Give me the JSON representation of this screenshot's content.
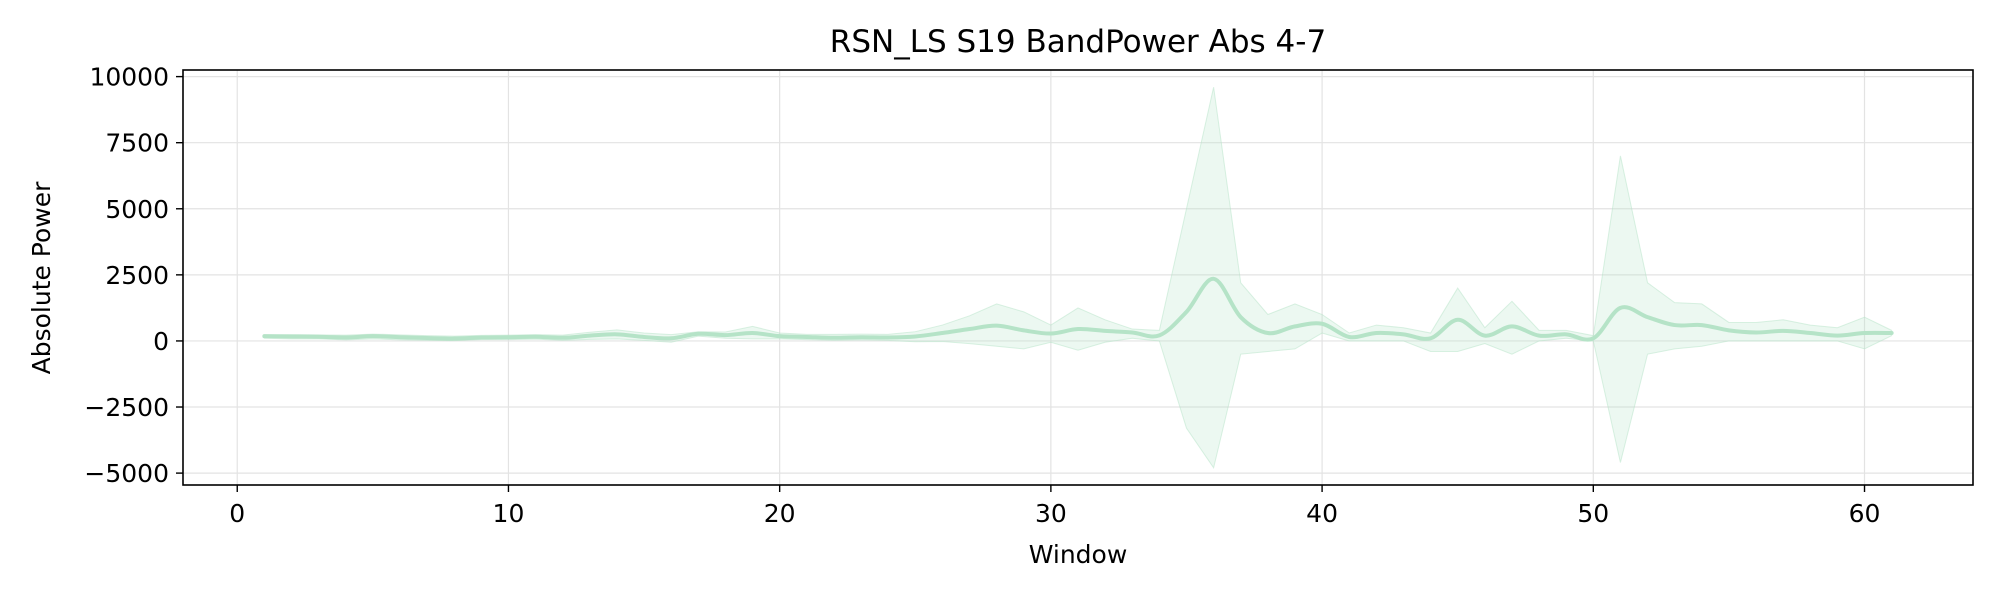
{
  "chart_data": {
    "type": "line",
    "title": "RSN_LS S19 BandPower Abs 4-7",
    "xlabel": "Window",
    "ylabel": "Absolute Power",
    "xlim": [
      -2,
      64
    ],
    "ylim": [
      -5450,
      10250
    ],
    "xticks": [
      0,
      10,
      20,
      30,
      40,
      50,
      60
    ],
    "yticks": [
      -5000,
      -2500,
      0,
      2500,
      5000,
      7500,
      10000
    ],
    "ytick_labels": [
      "−5000",
      "−2500",
      "0",
      "2500",
      "5000",
      "7500",
      "10000"
    ],
    "grid": true,
    "legend": "none",
    "colors": {
      "line": "#b5e3c7",
      "band": "#b5e3c7"
    },
    "series": [
      {
        "x": [
          1,
          2,
          3,
          4,
          5,
          6,
          7,
          8,
          9,
          10,
          11,
          12,
          13,
          14,
          15,
          16,
          17,
          18,
          19,
          20,
          21,
          22,
          23,
          24,
          25,
          26,
          27,
          28,
          29,
          30,
          31,
          32,
          33,
          34,
          35,
          36,
          37,
          38,
          39,
          40,
          41,
          42,
          43,
          44,
          45,
          46,
          47,
          48,
          49,
          50,
          51,
          52,
          53,
          54,
          55,
          56,
          57,
          58,
          59,
          60,
          61
        ],
        "mean": [
          180,
          170,
          160,
          130,
          180,
          140,
          110,
          90,
          130,
          140,
          160,
          120,
          200,
          250,
          150,
          100,
          270,
          220,
          300,
          180,
          150,
          120,
          140,
          130,
          170,
          300,
          450,
          580,
          400,
          280,
          450,
          380,
          320,
          210,
          1100,
          2350,
          900,
          300,
          550,
          650,
          150,
          300,
          250,
          100,
          800,
          200,
          550,
          200,
          250,
          100,
          1250,
          900,
          600,
          600,
          400,
          320,
          380,
          300,
          200,
          300,
          300
        ],
        "upper": [
          230,
          240,
          230,
          220,
          260,
          230,
          200,
          180,
          210,
          220,
          240,
          220,
          330,
          420,
          300,
          240,
          350,
          340,
          550,
          300,
          250,
          250,
          260,
          250,
          350,
          600,
          950,
          1400,
          1100,
          600,
          1250,
          800,
          450,
          400,
          5000,
          9600,
          2200,
          1000,
          1400,
          1000,
          300,
          600,
          500,
          300,
          2000,
          500,
          1500,
          400,
          400,
          200,
          7000,
          2200,
          1450,
          1400,
          700,
          700,
          800,
          600,
          500,
          900,
          400
        ],
        "lower": [
          100,
          80,
          80,
          40,
          80,
          40,
          20,
          10,
          50,
          50,
          70,
          20,
          60,
          80,
          20,
          -50,
          180,
          100,
          80,
          80,
          50,
          20,
          40,
          20,
          -30,
          -20,
          -100,
          -200,
          -300,
          -50,
          -350,
          -50,
          100,
          0,
          -3300,
          -4800,
          -500,
          -400,
          -300,
          300,
          0,
          0,
          0,
          -400,
          -400,
          -100,
          -500,
          0,
          100,
          0,
          -4600,
          -500,
          -300,
          -200,
          0,
          0,
          0,
          0,
          0,
          -300,
          200
        ]
      }
    ]
  }
}
